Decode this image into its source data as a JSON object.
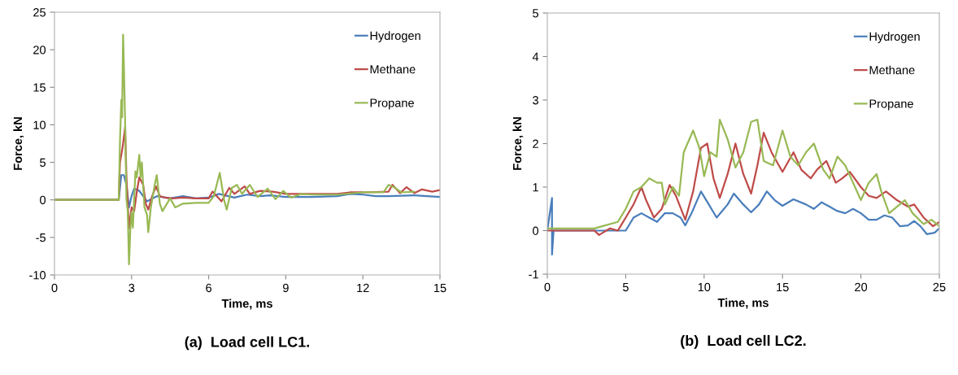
{
  "chart_data": [
    {
      "type": "line",
      "title": "(a)  Load cell LC1.",
      "xlabel": "Time, ms",
      "ylabel": "Force, kN",
      "xlim": [
        0,
        15
      ],
      "xticks": [
        0,
        3,
        6,
        9,
        12,
        15
      ],
      "ylim": [
        -10,
        25
      ],
      "yticks": [
        -10,
        -5,
        0,
        5,
        10,
        15,
        20,
        25
      ],
      "grid": false,
      "legend": "top right",
      "marker": "none",
      "line_style": "solid",
      "series": [
        {
          "name": "Hydrogen",
          "color": "#4a7ebb",
          "x": [
            0,
            2.5,
            2.6,
            2.7,
            2.8,
            2.9,
            3.0,
            3.1,
            3.3,
            3.6,
            4,
            4.5,
            5,
            5.5,
            6,
            6.4,
            7,
            7.5,
            8,
            8.4,
            9,
            10,
            11,
            11.5,
            12,
            12.5,
            13,
            14,
            15
          ],
          "values": [
            0,
            0,
            3.3,
            3.3,
            2,
            -1,
            0.5,
            1.5,
            1.2,
            -0.2,
            0.5,
            0.2,
            0.5,
            0.2,
            0.3,
            0.8,
            0.3,
            0.7,
            0.5,
            0.6,
            0.4,
            0.4,
            0.5,
            0.8,
            0.7,
            0.5,
            0.5,
            0.6,
            0.4
          ]
        },
        {
          "name": "Methane",
          "color": "#be4b48",
          "x": [
            0,
            2.5,
            2.55,
            2.65,
            2.75,
            2.8,
            2.9,
            3.0,
            3.1,
            3.2,
            3.3,
            3.45,
            3.55,
            3.65,
            3.8,
            3.95,
            4.1,
            4.3,
            4.6,
            5,
            5.5,
            6,
            6.15,
            6.5,
            6.8,
            7.0,
            7.4,
            7.6,
            8,
            8.5,
            9,
            10,
            11,
            11.5,
            12,
            13,
            13.15,
            13.45,
            13.7,
            14,
            14.3,
            14.7,
            15
          ],
          "values": [
            0,
            0,
            5,
            7,
            9.7,
            3,
            -3.8,
            -1,
            -1.5,
            1,
            3,
            2,
            -0.5,
            -1.3,
            0.5,
            1.8,
            0.5,
            0.3,
            0.2,
            0.3,
            0.2,
            0.2,
            1.1,
            -0.2,
            1.6,
            0.8,
            1.8,
            0.8,
            1.2,
            1.1,
            0.8,
            0.8,
            0.8,
            1.0,
            1.0,
            1.1,
            2.0,
            0.9,
            1.7,
            0.9,
            1.4,
            1.1,
            1.3
          ]
        },
        {
          "name": "Propane",
          "color": "#98b954",
          "x": [
            0,
            2.5,
            2.55,
            2.6,
            2.63,
            2.67,
            2.7,
            2.75,
            2.8,
            2.85,
            2.9,
            2.95,
            3.0,
            3.05,
            3.15,
            3.2,
            3.3,
            3.35,
            3.4,
            3.5,
            3.6,
            3.65,
            3.75,
            3.9,
            3.98,
            4.1,
            4.2,
            4.5,
            4.7,
            5,
            5.5,
            6,
            6.2,
            6.43,
            6.6,
            6.7,
            6.9,
            7.1,
            7.3,
            7.6,
            7.9,
            8.3,
            8.6,
            8.9,
            9.2,
            9.6,
            10,
            11,
            12,
            12.8,
            13,
            13.2,
            13.5,
            14
          ],
          "values": [
            0,
            0,
            8,
            13.3,
            11,
            22,
            18,
            10,
            0,
            -1.5,
            -8.6,
            -4,
            -1.7,
            -3.7,
            3.8,
            3,
            6,
            3,
            5,
            -1,
            -2,
            -4.3,
            -1,
            2,
            3.3,
            -0.5,
            -1.5,
            0.2,
            -1,
            -0.5,
            -0.4,
            -0.4,
            0.5,
            3.6,
            0,
            -1.3,
            1.6,
            2,
            0.8,
            2,
            0.4,
            1.5,
            0.1,
            1.2,
            0.3,
            0.8,
            0.7,
            0.7,
            1.0,
            1.0,
            2,
            1.7,
            1.0,
            1.1
          ]
        }
      ]
    },
    {
      "type": "line",
      "title": "(b)  Load cell LC2.",
      "xlabel": "Time, ms",
      "ylabel": "Force, kN",
      "xlim": [
        0,
        25
      ],
      "xticks": [
        0,
        5,
        10,
        15,
        20,
        25
      ],
      "ylim": [
        -1,
        5
      ],
      "yticks": [
        -1,
        0,
        1,
        2,
        3,
        4,
        5
      ],
      "grid": false,
      "legend": "top right",
      "marker": "none",
      "line_style": "solid",
      "series": [
        {
          "name": "Hydrogen",
          "color": "#4a7ebb",
          "x": [
            0,
            0.3,
            0.3,
            0.4,
            4,
            5,
            5.5,
            6,
            6.5,
            7,
            7.5,
            8,
            8.5,
            8.8,
            9.2,
            9.8,
            10.3,
            10.8,
            11.5,
            11.9,
            12.5,
            13,
            13.5,
            14,
            14.5,
            15,
            15.7,
            16.5,
            17,
            17.5,
            18,
            18.5,
            19,
            19.5,
            20,
            20.5,
            21,
            21.5,
            22,
            22.5,
            23,
            23.4,
            23.8,
            24.2,
            24.7,
            25
          ],
          "values": [
            0,
            0.75,
            -0.55,
            0,
            0,
            0.0,
            0.3,
            0.4,
            0.3,
            0.2,
            0.4,
            0.4,
            0.3,
            0.12,
            0.4,
            0.9,
            0.6,
            0.3,
            0.6,
            0.85,
            0.6,
            0.42,
            0.6,
            0.9,
            0.7,
            0.57,
            0.72,
            0.6,
            0.5,
            0.65,
            0.55,
            0.45,
            0.4,
            0.5,
            0.4,
            0.25,
            0.25,
            0.35,
            0.3,
            0.1,
            0.12,
            0.22,
            0.1,
            -0.08,
            -0.05,
            0.05
          ]
        },
        {
          "name": "Methane",
          "color": "#be4b48",
          "x": [
            0,
            3,
            3.3,
            4,
            4.5,
            5,
            5.5,
            6,
            6.3,
            6.8,
            7.3,
            7.8,
            8.2,
            8.8,
            9.3,
            9.8,
            10.2,
            10.6,
            11,
            11.5,
            12,
            12.5,
            13,
            13.4,
            13.8,
            14.3,
            15,
            15.7,
            16.2,
            16.8,
            17.2,
            17.8,
            18.4,
            18.8,
            19.3,
            20,
            20.5,
            21,
            21.6,
            22.3,
            23,
            23.4,
            24,
            24.6,
            25
          ],
          "values": [
            0,
            0,
            -0.1,
            0.05,
            0,
            0.3,
            0.6,
            1.0,
            0.7,
            0.3,
            0.5,
            1.05,
            0.8,
            0.25,
            0.9,
            1.9,
            2.0,
            1.2,
            0.75,
            1.3,
            2.0,
            1.3,
            0.85,
            1.5,
            2.25,
            1.8,
            1.35,
            1.8,
            1.4,
            1.2,
            1.4,
            1.6,
            1.1,
            1.2,
            1.35,
            1.0,
            0.8,
            0.75,
            0.9,
            0.7,
            0.55,
            0.6,
            0.3,
            0.1,
            0.2
          ]
        },
        {
          "name": "Propane",
          "color": "#98b954",
          "x": [
            0,
            3,
            3.5,
            4.5,
            5,
            5.5,
            6,
            6.5,
            7,
            7.3,
            7.5,
            8,
            8.4,
            8.7,
            9.3,
            9.7,
            10,
            10.4,
            10.8,
            11,
            11.5,
            12,
            12.5,
            13,
            13.4,
            13.8,
            14.4,
            15,
            15.5,
            16,
            16.5,
            17,
            17.6,
            18,
            18.5,
            19,
            19.5,
            20,
            20.5,
            21,
            21.3,
            21.8,
            22.3,
            22.8,
            23.3,
            24,
            24.5,
            25
          ],
          "values": [
            0.05,
            0.05,
            0.1,
            0.2,
            0.5,
            0.9,
            1.0,
            1.2,
            1.1,
            1.1,
            0.6,
            1.0,
            0.8,
            1.8,
            2.3,
            1.9,
            1.25,
            1.8,
            1.7,
            2.55,
            2.1,
            1.45,
            1.8,
            2.5,
            2.55,
            1.6,
            1.5,
            2.3,
            1.7,
            1.5,
            1.8,
            2.0,
            1.4,
            1.2,
            1.7,
            1.5,
            1.1,
            0.7,
            1.1,
            1.3,
            0.9,
            0.4,
            0.55,
            0.7,
            0.4,
            0.15,
            0.25,
            0.1
          ]
        }
      ]
    }
  ]
}
